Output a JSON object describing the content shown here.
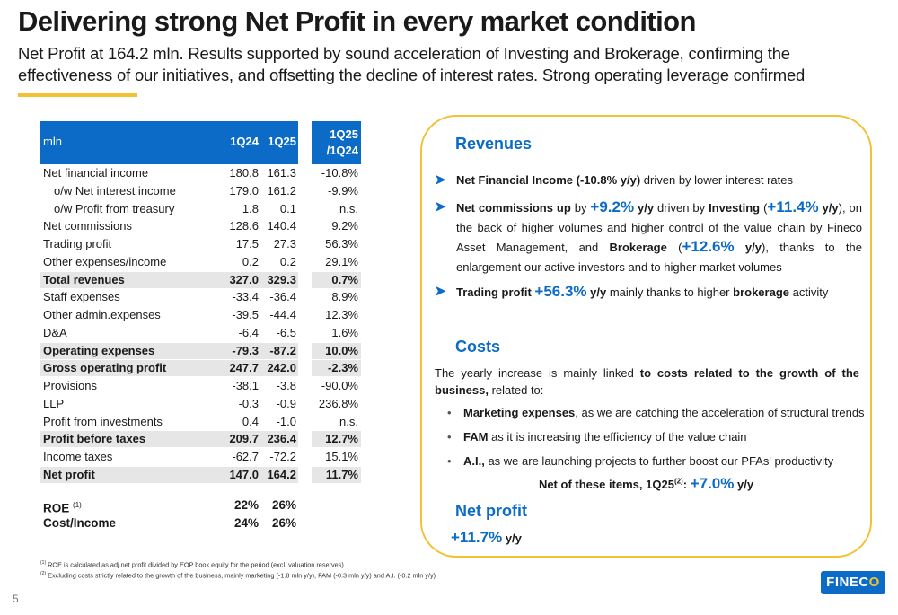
{
  "title": "Delivering strong Net Profit in every market condition",
  "subtitle": "Net Profit at 164.2 mln. Results supported by sound acceleration of Investing and Brokerage, confirming the effectiveness of our initiatives, and offsetting the decline of interest rates. Strong operating leverage confirmed",
  "colors": {
    "accent_blue": "#0b6bc6",
    "accent_yellow": "#f2c232",
    "row_highlight": "#e6e6e6"
  },
  "table": {
    "headers": {
      "label": "mln",
      "c1": "1Q24",
      "c2": "1Q25",
      "c3_line1": "1Q25",
      "c3_line2": "/1Q24"
    },
    "rows": [
      {
        "label": "Net financial income",
        "c1": "180.8",
        "c2": "161.3",
        "c3": "-10.8%"
      },
      {
        "label": "o/w Net interest income",
        "c1": "179.0",
        "c2": "161.2",
        "c3": "-9.9%"
      },
      {
        "label": "o/w Profit from treasury",
        "c1": "1.8",
        "c2": "0.1",
        "c3": "n.s."
      },
      {
        "label": "Net commissions",
        "c1": "128.6",
        "c2": "140.4",
        "c3": "9.2%"
      },
      {
        "label": "Trading profit",
        "c1": "17.5",
        "c2": "27.3",
        "c3": "56.3%"
      },
      {
        "label": "Other expenses/income",
        "c1": "0.2",
        "c2": "0.2",
        "c3": "29.1%"
      },
      {
        "label": "Total revenues",
        "c1": "327.0",
        "c2": "329.3",
        "c3": "0.7%"
      },
      {
        "label": "Staff expenses",
        "c1": "-33.4",
        "c2": "-36.4",
        "c3": "8.9%"
      },
      {
        "label": "Other admin.expenses",
        "c1": "-39.5",
        "c2": "-44.4",
        "c3": "12.3%"
      },
      {
        "label": "D&A",
        "c1": "-6.4",
        "c2": "-6.5",
        "c3": "1.6%"
      },
      {
        "label": "Operating expenses",
        "c1": "-79.3",
        "c2": "-87.2",
        "c3": "10.0%"
      },
      {
        "label": "Gross operating profit",
        "c1": "247.7",
        "c2": "242.0",
        "c3": "-2.3%"
      },
      {
        "label": "Provisions",
        "c1": "-38.1",
        "c2": "-3.8",
        "c3": "-90.0%"
      },
      {
        "label": "LLP",
        "c1": "-0.3",
        "c2": "-0.9",
        "c3": "236.8%"
      },
      {
        "label": "Profit from investments",
        "c1": "0.4",
        "c2": "-1.0",
        "c3": "n.s."
      },
      {
        "label": "Profit before taxes",
        "c1": "209.7",
        "c2": "236.4",
        "c3": "12.7%"
      },
      {
        "label": "Income taxes",
        "c1": "-62.7",
        "c2": "-72.2",
        "c3": "15.1%"
      },
      {
        "label": "Net profit",
        "c1": "147.0",
        "c2": "164.2",
        "c3": "11.7%"
      }
    ],
    "roe": {
      "label": "ROE",
      "sup": "(1)",
      "c1": "22%",
      "c2": "26%"
    },
    "cost_income": {
      "label": "Cost/Income",
      "c1": "24%",
      "c2": "26%"
    }
  },
  "footnotes": {
    "n1_mark": "(1)",
    "n1": "ROE is calculated as adj.net profit divided by EOP book equity for the period (excl. valuation reserves)",
    "n2_mark": "(2)",
    "n2_lead": "Excluding",
    "n2": "costs strictly related to the growth of the business, mainly marketing (-1.8 mln y/y), FAM (-0.3 mln y/y) and A.I. (-0.2 mln y/y)"
  },
  "page_number": "5",
  "logo": {
    "pre": "FINEC",
    "accent": "O"
  },
  "revenues": {
    "heading": "Revenues",
    "b1": {
      "bold": "Net Financial Income (-10.8% y/y)",
      "rest": " driven by lower interest rates"
    },
    "b2": {
      "bold1": "Net commissions up",
      "t1": " by ",
      "big1": "+9.2%",
      "bold2": " y/y",
      "t2": " driven by ",
      "bold3": "Investing",
      "t3": " (",
      "big2": "+11.4%",
      "bold4": " y/y",
      "t4": "), on the back of higher volumes and higher control of the value chain by Fineco Asset Management, and ",
      "bold5": "Brokerage",
      "t5": " (",
      "big3": "+12.6%",
      "bold6": " y/y",
      "t6": "), thanks to the enlargement our active investors and to higher market volumes"
    },
    "b3": {
      "bold1": "Trading profit ",
      "big": "+56.3%",
      "bold2": " y/y",
      "t1": " mainly thanks to higher ",
      "bold3": "brokerage",
      "t2": " activity"
    }
  },
  "costs": {
    "heading": "Costs",
    "intro_plain": "The yearly increase is mainly linked ",
    "intro_bold": "to costs related to the growth of the business,",
    "intro_tail": " related to:",
    "items": [
      {
        "bold": "Marketing expenses",
        "rest": ", as we are catching the acceleration of structural trends"
      },
      {
        "bold": "FAM",
        "rest": " as it is increasing the efficiency of the value chain"
      },
      {
        "bold": "A.I.,",
        "rest": " as we are launching projects to further boost our PFAs' productivity"
      }
    ],
    "net_items": {
      "lead": "Net of these items, 1Q25",
      "sup": "(2)",
      "colon": ":",
      "big": "+7.0%",
      "tail": " y/y"
    }
  },
  "net_profit": {
    "heading": "Net profit",
    "big": "+11.7%",
    "tail": " y/y"
  }
}
